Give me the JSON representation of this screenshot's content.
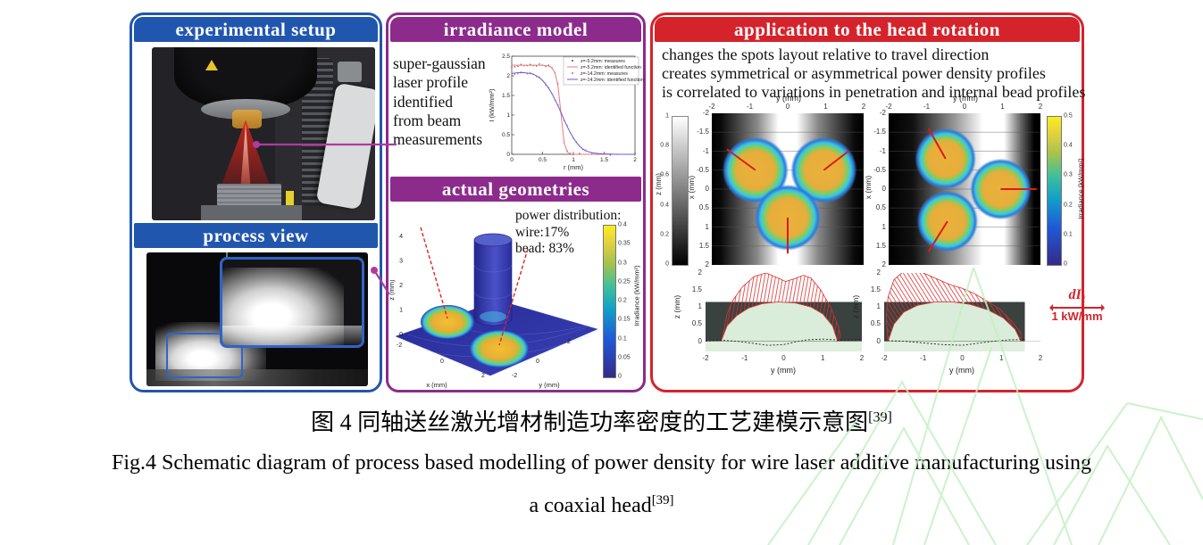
{
  "panels": {
    "left": {
      "header_setup": "experimental setup",
      "header_process": "process view"
    },
    "middle": {
      "header_irradiance": "irradiance model",
      "irradiance_note_lines": [
        "super-gaussian",
        "laser profile",
        "identified",
        "from beam",
        "measurements"
      ],
      "header_geometries": "actual geometries"
    },
    "application": {
      "header": "application to the head rotation",
      "bullets": [
        "changes the spots layout relative to travel direction",
        "creates symmetrical or asymmetrical power density profiles",
        "is correlated to variations in penetration and internal bead profiles"
      ],
      "scale_symbol_main": "dI",
      "scale_symbol_sub": "ℓ",
      "scale_value": "1 kW/mm"
    }
  },
  "captions": {
    "zh": "图 4 同轴送丝激光增材制造功率密度的工艺建模示意图",
    "zh_ref": "[39]",
    "en_line1": "Fig.4 Schematic diagram of process based modelling of power density for wire laser additive manufacturing using",
    "en_line2": "a coaxial head",
    "en_ref": "[39]"
  },
  "colors": {
    "blue": "#2156ae",
    "purple": "#8c2b8c",
    "red": "#d5232b",
    "connector_magenta": "#b13a9e",
    "watermark_green": "#c2f0c2"
  },
  "chart_data": [
    {
      "id": "irradiance_profile",
      "type": "line",
      "xlabel": "r (mm)",
      "ylabel": "I (kW/mm²)",
      "xlim": [
        0,
        2
      ],
      "ylim": [
        0,
        2.5
      ],
      "xticks": [
        0,
        0.5,
        1,
        1.5,
        2
      ],
      "yticks": [
        0,
        0.5,
        1,
        1.5,
        2,
        2.5
      ],
      "legend_position": "top-right",
      "series": [
        {
          "name": "z=-5.2mm: measures",
          "style": "dots",
          "color": "#8b3535",
          "points": [
            [
              0,
              2.2
            ],
            [
              0.05,
              2.23
            ],
            [
              0.1,
              2.26
            ],
            [
              0.15,
              2.27
            ],
            [
              0.2,
              2.26
            ],
            [
              0.25,
              2.28
            ],
            [
              0.3,
              2.27
            ],
            [
              0.35,
              2.26
            ],
            [
              0.4,
              2.27
            ],
            [
              0.45,
              2.28
            ],
            [
              0.5,
              2.27
            ],
            [
              0.55,
              2.26
            ],
            [
              0.6,
              2.25
            ],
            [
              0.65,
              2.21
            ],
            [
              0.7,
              2.1
            ],
            [
              0.75,
              1.78
            ],
            [
              0.8,
              1.05
            ],
            [
              0.85,
              0.32
            ],
            [
              0.9,
              0.07
            ],
            [
              0.95,
              0.02
            ],
            [
              1,
              0.01
            ],
            [
              1.1,
              0
            ],
            [
              1.3,
              0
            ],
            [
              1.6,
              0
            ],
            [
              2,
              0
            ]
          ]
        },
        {
          "name": "z=-5.2mm: identified function",
          "style": "line",
          "color": "#e87a7a",
          "points": [
            [
              0,
              2.27
            ],
            [
              0.1,
              2.27
            ],
            [
              0.2,
              2.27
            ],
            [
              0.3,
              2.27
            ],
            [
              0.4,
              2.27
            ],
            [
              0.5,
              2.27
            ],
            [
              0.55,
              2.26
            ],
            [
              0.6,
              2.25
            ],
            [
              0.65,
              2.21
            ],
            [
              0.7,
              2.08
            ],
            [
              0.75,
              1.75
            ],
            [
              0.8,
              1.02
            ],
            [
              0.85,
              0.3
            ],
            [
              0.9,
              0.06
            ],
            [
              0.95,
              0.01
            ],
            [
              1,
              0
            ],
            [
              1.3,
              0
            ],
            [
              1.6,
              0
            ],
            [
              2,
              0
            ]
          ]
        },
        {
          "name": "z=-14.2mm: measures",
          "style": "dots",
          "color": "#b565c8",
          "points": [
            [
              0,
              2.0
            ],
            [
              0.05,
              2.04
            ],
            [
              0.1,
              2.07
            ],
            [
              0.15,
              2.08
            ],
            [
              0.2,
              2.08
            ],
            [
              0.25,
              2.07
            ],
            [
              0.3,
              2.06
            ],
            [
              0.35,
              2.04
            ],
            [
              0.4,
              2.0
            ],
            [
              0.45,
              1.95
            ],
            [
              0.5,
              1.88
            ],
            [
              0.55,
              1.79
            ],
            [
              0.6,
              1.68
            ],
            [
              0.65,
              1.55
            ],
            [
              0.7,
              1.4
            ],
            [
              0.75,
              1.24
            ],
            [
              0.8,
              1.06
            ],
            [
              0.85,
              0.88
            ],
            [
              0.9,
              0.71
            ],
            [
              0.95,
              0.55
            ],
            [
              1,
              0.42
            ],
            [
              1.05,
              0.3
            ],
            [
              1.1,
              0.21
            ],
            [
              1.15,
              0.14
            ],
            [
              1.2,
              0.09
            ],
            [
              1.3,
              0.04
            ],
            [
              1.4,
              0.02
            ],
            [
              1.5,
              0.01
            ],
            [
              1.7,
              0
            ],
            [
              2,
              0
            ]
          ]
        },
        {
          "name": "z=-14.2mm: identified function",
          "style": "line",
          "color": "#6a5acd",
          "points": [
            [
              0,
              2.06
            ],
            [
              0.1,
              2.08
            ],
            [
              0.2,
              2.08
            ],
            [
              0.3,
              2.06
            ],
            [
              0.35,
              2.04
            ],
            [
              0.4,
              2.0
            ],
            [
              0.45,
              1.95
            ],
            [
              0.5,
              1.88
            ],
            [
              0.55,
              1.79
            ],
            [
              0.6,
              1.68
            ],
            [
              0.65,
              1.55
            ],
            [
              0.7,
              1.4
            ],
            [
              0.75,
              1.24
            ],
            [
              0.8,
              1.06
            ],
            [
              0.85,
              0.88
            ],
            [
              0.9,
              0.71
            ],
            [
              0.95,
              0.55
            ],
            [
              1,
              0.42
            ],
            [
              1.05,
              0.3
            ],
            [
              1.1,
              0.21
            ],
            [
              1.15,
              0.14
            ],
            [
              1.2,
              0.09
            ],
            [
              1.3,
              0.04
            ],
            [
              1.4,
              0.02
            ],
            [
              1.5,
              0.01
            ],
            [
              1.7,
              0
            ],
            [
              2,
              0
            ]
          ]
        }
      ]
    },
    {
      "id": "actual_geometries",
      "type": "surface3d",
      "zlabel": "z (mm)",
      "xlabel": "x (mm)",
      "ylabel": "y (mm)",
      "zticks": [
        4,
        3,
        2,
        1,
        0
      ],
      "xticks": [
        -2,
        0,
        2
      ],
      "yticks": [
        2,
        0,
        -2
      ],
      "annotation": [
        "power distribution:",
        "wire:17%",
        "bead: 83%"
      ],
      "colorbar": {
        "label": "Irradiance (kW/mm²)",
        "ticks": [
          0.4,
          0.35,
          0.3,
          0.25,
          0.2,
          0.15,
          0.1,
          0.05,
          0
        ],
        "range": [
          0,
          0.4
        ]
      },
      "features": {
        "wire_share": "17%",
        "bead_share": "83%",
        "spots": 2,
        "wire": "central cylinder"
      }
    },
    {
      "id": "spots_layout_symmetric",
      "type": "heatmap",
      "top_axis_label": "y (mm)",
      "top_ticks": [
        -2,
        -1,
        0,
        1,
        2
      ],
      "left_axis_label": "x (mm)",
      "left_ticks": [
        -2,
        -1.5,
        -1,
        -0.5,
        0,
        0.5,
        1,
        1.5,
        2
      ],
      "spot_radius": 0.78,
      "spots": [
        {
          "y": -0.85,
          "x": -0.5
        },
        {
          "y": 0.95,
          "x": -0.5
        },
        {
          "y": 0,
          "x": 0.75
        }
      ],
      "pointer_lines": [
        [
          -0.85,
          -0.5,
          -1.6,
          -1.05
        ],
        [
          0.95,
          -0.5,
          1.6,
          -1.0
        ],
        [
          0,
          0.75,
          0,
          1.7
        ]
      ],
      "white_band_center_frac": 0.5
    },
    {
      "id": "spots_layout_asymmetric",
      "type": "heatmap",
      "top_axis_label": "y (mm)",
      "top_ticks": [
        -2,
        -1,
        0,
        1,
        2
      ],
      "left_axis_label": "x (mm)",
      "left_ticks": [
        -2,
        -1.5,
        -1,
        -0.5,
        0,
        0.5,
        1,
        1.5,
        2
      ],
      "spot_radius": 0.72,
      "spots": [
        {
          "y": -0.5,
          "x": -0.8
        },
        {
          "y": -0.45,
          "x": 0.85
        },
        {
          "y": 0.95,
          "x": 0
        }
      ],
      "pointer_lines": [
        [
          -0.5,
          -0.8,
          -0.95,
          -1.6
        ],
        [
          -0.45,
          0.85,
          -0.95,
          1.65
        ],
        [
          0.95,
          0,
          1.9,
          0
        ]
      ],
      "white_band_center_frac": 0.71,
      "colorbar": {
        "label": "Irradiance (kW/mm²)",
        "ticks": [
          0.5,
          0.4,
          0.3,
          0.2,
          0.1,
          0
        ],
        "range": [
          0,
          0.5
        ]
      }
    },
    {
      "id": "bead_profile_symmetric",
      "type": "area",
      "xlabel": "y (mm)",
      "ylabel": "z (mm)",
      "xticks": [
        -2,
        -1,
        0,
        1,
        2
      ],
      "yticks": [
        2,
        1.5,
        1,
        0.5,
        0
      ],
      "photo_top_z": 1.15,
      "photo_right_y": 2,
      "bead_outline": [
        [
          -1.6,
          0
        ],
        [
          -1.45,
          0.45
        ],
        [
          -1.2,
          0.75
        ],
        [
          -0.9,
          0.97
        ],
        [
          -0.55,
          1.1
        ],
        [
          -0.15,
          1.15
        ],
        [
          0.3,
          1.12
        ],
        [
          0.7,
          1.0
        ],
        [
          1.0,
          0.8
        ],
        [
          1.25,
          0.45
        ],
        [
          1.38,
          0
        ]
      ],
      "fan_outline": [
        [
          -1.55,
          0.2
        ],
        [
          -1.45,
          0.8
        ],
        [
          -1.3,
          1.2
        ],
        [
          -1.05,
          1.6
        ],
        [
          -0.75,
          1.9
        ],
        [
          -0.45,
          2.0
        ],
        [
          -0.2,
          1.88
        ],
        [
          0.05,
          1.75
        ],
        [
          0.25,
          1.82
        ],
        [
          0.5,
          1.93
        ],
        [
          0.7,
          1.85
        ],
        [
          0.95,
          1.5
        ],
        [
          1.2,
          1.0
        ],
        [
          1.4,
          0.45
        ],
        [
          1.45,
          0.15
        ]
      ],
      "dashed_line": [
        [
          -2,
          0
        ],
        [
          -1.6,
          0.03
        ],
        [
          -1.2,
          0
        ],
        [
          -0.8,
          -0.06
        ],
        [
          -0.4,
          -0.12
        ],
        [
          0,
          -0.1
        ],
        [
          0.3,
          -0.02
        ],
        [
          0.6,
          0.04
        ],
        [
          1,
          0.06
        ],
        [
          1.5,
          0.03
        ],
        [
          2,
          0.05
        ]
      ],
      "hatch_angle_deg": 10
    },
    {
      "id": "bead_profile_asymmetric",
      "type": "area",
      "xlabel": "y (mm)",
      "ylabel": "z (mm)",
      "xticks": [
        -2,
        -1,
        0,
        1,
        2
      ],
      "yticks": [
        2,
        1.5,
        1,
        0.5,
        0
      ],
      "photo_top_z": 1.15,
      "photo_right_y": 1.6,
      "bead_outline": [
        [
          -1.9,
          0
        ],
        [
          -1.75,
          0.5
        ],
        [
          -1.5,
          0.85
        ],
        [
          -1.15,
          1.05
        ],
        [
          -0.7,
          1.15
        ],
        [
          -0.25,
          1.15
        ],
        [
          0.2,
          1.08
        ],
        [
          0.65,
          0.92
        ],
        [
          1.05,
          0.68
        ],
        [
          1.35,
          0.35
        ],
        [
          1.5,
          0
        ]
      ],
      "fan_outline": [
        [
          -1.95,
          0.7
        ],
        [
          -1.9,
          1.3
        ],
        [
          -1.75,
          1.8
        ],
        [
          -1.5,
          2.05
        ],
        [
          -1.2,
          2.1
        ],
        [
          -0.9,
          1.95
        ],
        [
          -0.6,
          1.8
        ],
        [
          -0.3,
          1.65
        ],
        [
          0.0,
          1.55
        ],
        [
          0.3,
          1.4
        ],
        [
          0.6,
          1.2
        ],
        [
          0.95,
          0.95
        ],
        [
          1.25,
          0.6
        ],
        [
          1.5,
          0.25
        ]
      ],
      "dashed_line": [
        [
          -2,
          0.02
        ],
        [
          -1.5,
          0
        ],
        [
          -1,
          -0.05
        ],
        [
          -0.5,
          -0.1
        ],
        [
          0,
          -0.12
        ],
        [
          0.4,
          -0.06
        ],
        [
          0.8,
          0
        ],
        [
          1.2,
          0.04
        ],
        [
          1.6,
          0.05
        ]
      ],
      "hatch_angle_deg": -32
    },
    {
      "id": "z_position_colorbar",
      "type": "colorbar",
      "label": "z (mm)",
      "ticks": [
        1,
        0.8,
        0.6,
        0.4,
        0.2,
        0
      ],
      "range": [
        0,
        1
      ]
    }
  ]
}
